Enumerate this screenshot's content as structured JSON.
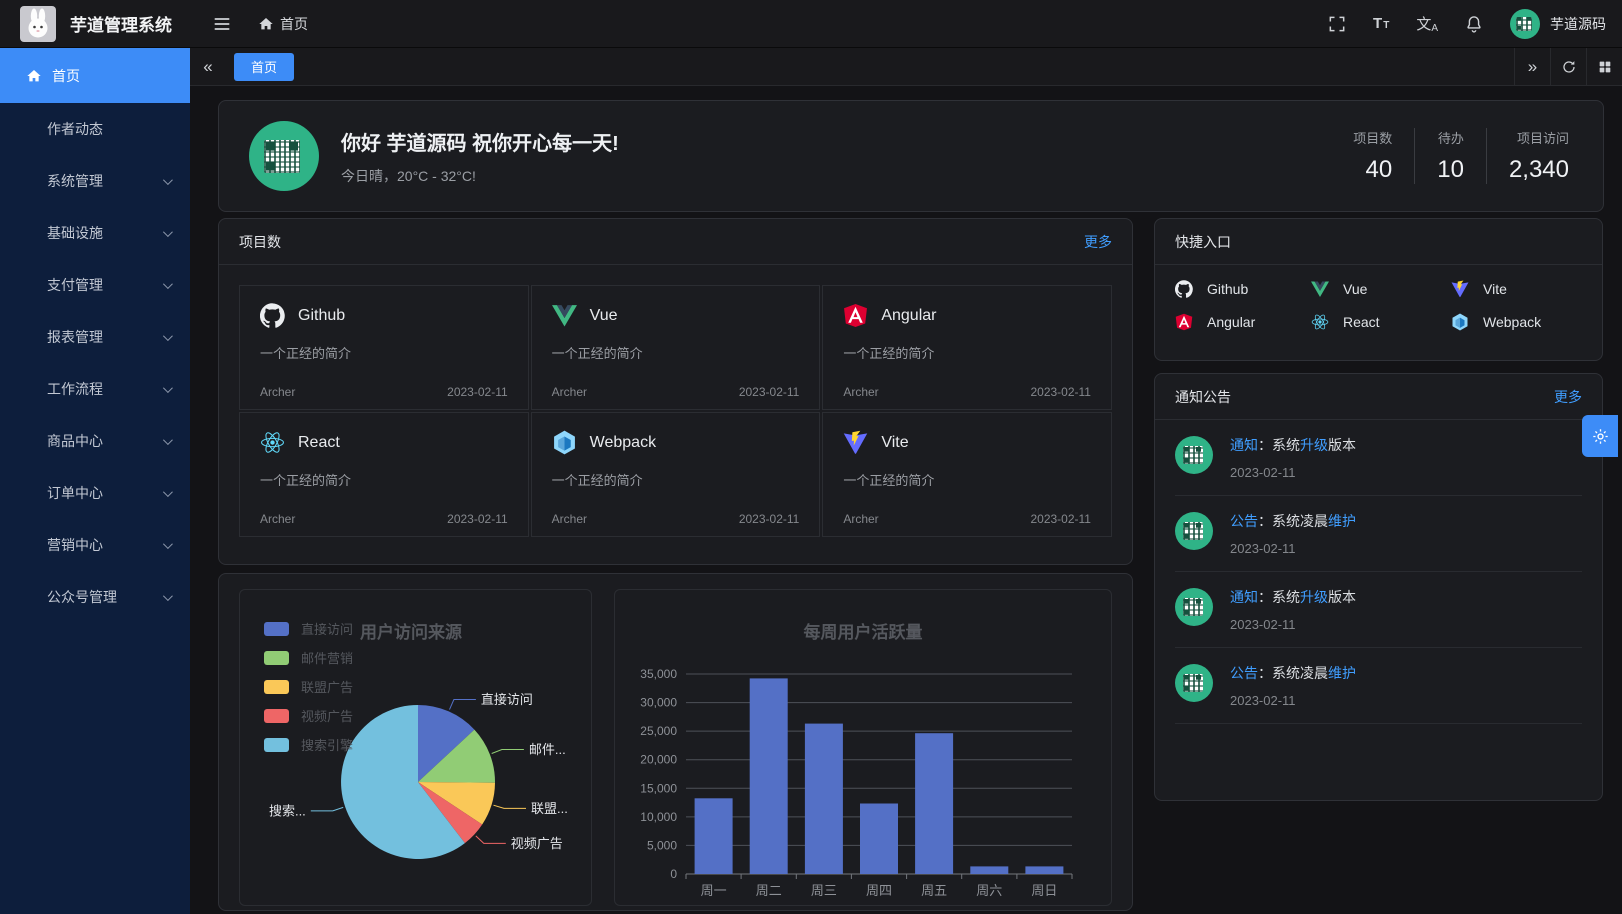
{
  "app": {
    "title": "芋道管理系统",
    "username": "芋道源码"
  },
  "header": {
    "breadcrumb_home": "首页"
  },
  "tabbar": {
    "active_tab": "首页"
  },
  "sidebar": {
    "items": [
      {
        "key": "home",
        "label": "首页",
        "icon": "home-icon",
        "active": true,
        "expandable": false
      },
      {
        "key": "author-feed",
        "label": "作者动态",
        "active": false,
        "expandable": false
      },
      {
        "key": "system",
        "label": "系统管理",
        "active": false,
        "expandable": true
      },
      {
        "key": "infra",
        "label": "基础设施",
        "active": false,
        "expandable": true
      },
      {
        "key": "payment",
        "label": "支付管理",
        "active": false,
        "expandable": true
      },
      {
        "key": "report",
        "label": "报表管理",
        "active": false,
        "expandable": true
      },
      {
        "key": "workflow",
        "label": "工作流程",
        "active": false,
        "expandable": true
      },
      {
        "key": "product",
        "label": "商品中心",
        "active": false,
        "expandable": true
      },
      {
        "key": "order",
        "label": "订单中心",
        "active": false,
        "expandable": true
      },
      {
        "key": "marketing",
        "label": "营销中心",
        "active": false,
        "expandable": true
      },
      {
        "key": "mp",
        "label": "公众号管理",
        "active": false,
        "expandable": true
      }
    ]
  },
  "welcome": {
    "greeting": "你好 芋道源码 祝你开心每一天!",
    "weather": "今日晴，20°C - 32°C!",
    "stats": [
      {
        "label": "项目数",
        "value": "40"
      },
      {
        "label": "待办",
        "value": "10"
      },
      {
        "label": "项目访问",
        "value": "2,340"
      }
    ]
  },
  "projects": {
    "title": "项目数",
    "more_label": "更多",
    "items": [
      {
        "name": "Github",
        "icon": "github-icon",
        "desc": "一个正经的简介",
        "author": "Archer",
        "date": "2023-02-11"
      },
      {
        "name": "Vue",
        "icon": "vue-icon",
        "desc": "一个正经的简介",
        "author": "Archer",
        "date": "2023-02-11"
      },
      {
        "name": "Angular",
        "icon": "angular-icon",
        "desc": "一个正经的简介",
        "author": "Archer",
        "date": "2023-02-11"
      },
      {
        "name": "React",
        "icon": "react-icon",
        "desc": "一个正经的简介",
        "author": "Archer",
        "date": "2023-02-11"
      },
      {
        "name": "Webpack",
        "icon": "webpack-icon",
        "desc": "一个正经的简介",
        "author": "Archer",
        "date": "2023-02-11"
      },
      {
        "name": "Vite",
        "icon": "vite-icon",
        "desc": "一个正经的简介",
        "author": "Archer",
        "date": "2023-02-11"
      }
    ]
  },
  "shortcuts": {
    "title": "快捷入口",
    "items": [
      {
        "name": "Github",
        "icon": "github-icon"
      },
      {
        "name": "Vue",
        "icon": "vue-icon"
      },
      {
        "name": "Vite",
        "icon": "vite-icon"
      },
      {
        "name": "Angular",
        "icon": "angular-icon"
      },
      {
        "name": "React",
        "icon": "react-icon"
      },
      {
        "name": "Webpack",
        "icon": "webpack-icon"
      }
    ]
  },
  "notices": {
    "title": "通知公告",
    "more_label": "更多",
    "items": [
      {
        "segments": [
          {
            "text": "通知",
            "highlight": true
          },
          {
            "text": "：系统",
            "highlight": false
          },
          {
            "text": "升级",
            "highlight": true
          },
          {
            "text": "版本",
            "highlight": false
          }
        ],
        "date": "2023-02-11"
      },
      {
        "segments": [
          {
            "text": "公告",
            "highlight": true
          },
          {
            "text": "：系统凌晨",
            "highlight": false
          },
          {
            "text": "维护",
            "highlight": true
          }
        ],
        "date": "2023-02-11"
      },
      {
        "segments": [
          {
            "text": "通知",
            "highlight": true
          },
          {
            "text": "：系统",
            "highlight": false
          },
          {
            "text": "升级",
            "highlight": true
          },
          {
            "text": "版本",
            "highlight": false
          }
        ],
        "date": "2023-02-11"
      },
      {
        "segments": [
          {
            "text": "公告",
            "highlight": true
          },
          {
            "text": "：系统凌晨",
            "highlight": false
          },
          {
            "text": "维护",
            "highlight": true
          }
        ],
        "date": "2023-02-11"
      }
    ]
  },
  "chart_data": [
    {
      "type": "pie",
      "title": "用户访问来源",
      "legend_position": "left",
      "legend": [
        "直接访问",
        "邮件营销",
        "联盟广告",
        "视频广告",
        "搜索引擎"
      ],
      "series": [
        {
          "name": "直接访问",
          "value": 335,
          "color": "#5470c6",
          "label": "直接访问"
        },
        {
          "name": "邮件营销",
          "value": 310,
          "color": "#91cc75",
          "label": "邮件..."
        },
        {
          "name": "联盟广告",
          "value": 234,
          "color": "#fac858",
          "label": "联盟..."
        },
        {
          "name": "视频广告",
          "value": 135,
          "color": "#ee6666",
          "label": "视频广告"
        },
        {
          "name": "搜索引擎",
          "value": 1548,
          "color": "#73c0de",
          "label": "搜索..."
        }
      ]
    },
    {
      "type": "bar",
      "title": "每周用户活跃量",
      "categories": [
        "周一",
        "周二",
        "周三",
        "周四",
        "周五",
        "周六",
        "周日"
      ],
      "values": [
        13253,
        34235,
        26321,
        12340,
        24643,
        1322,
        1324
      ],
      "ylim": [
        0,
        35000
      ],
      "ytick_labels": [
        "0",
        "5,000",
        "10,000",
        "15,000",
        "20,000",
        "25,000",
        "30,000",
        "35,000"
      ],
      "bar_color": "#5470c6",
      "grid": true,
      "legend_position": "none"
    }
  ],
  "theme": {
    "accent": "#409eff",
    "sidebar_bg": "#0d1e3c",
    "card_bg": "#1b1c20",
    "page_bg": "#131316",
    "avatar_green": "#2fb387"
  }
}
